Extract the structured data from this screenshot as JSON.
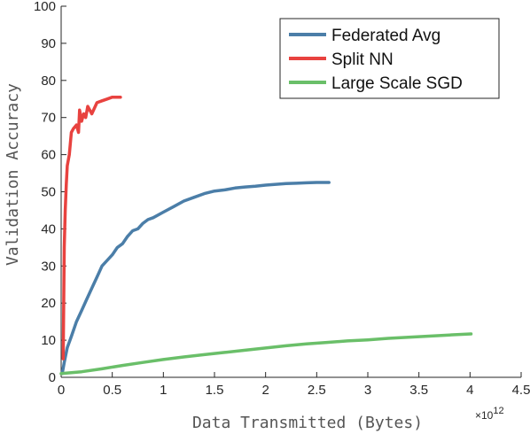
{
  "chart_data": {
    "type": "line",
    "title": "",
    "xlabel": "Data Transmitted (Bytes)",
    "ylabel": "Validation Accuracy",
    "x_multiplier": {
      "base": "×10",
      "exponent": "12"
    },
    "xlim": [
      0,
      4.5
    ],
    "ylim": [
      0,
      100
    ],
    "x_ticks": [
      0,
      0.5,
      1,
      1.5,
      2,
      2.5,
      3,
      3.5,
      4,
      4.5
    ],
    "x_tick_labels": [
      "0",
      "0.5",
      "1",
      "1.5",
      "2",
      "2.5",
      "3",
      "3.5",
      "4",
      "4.5"
    ],
    "y_ticks": [
      0,
      10,
      20,
      30,
      40,
      50,
      60,
      70,
      80,
      90,
      100
    ],
    "y_tick_labels": [
      "0",
      "10",
      "20",
      "30",
      "40",
      "50",
      "60",
      "70",
      "80",
      "90",
      "100"
    ],
    "grid": false,
    "legend_position": "top-right",
    "series": [
      {
        "name": "Federated Avg",
        "color": "#4b7ea8",
        "x": [
          0.01,
          0.03,
          0.06,
          0.1,
          0.15,
          0.2,
          0.25,
          0.3,
          0.35,
          0.4,
          0.45,
          0.5,
          0.55,
          0.6,
          0.65,
          0.7,
          0.75,
          0.8,
          0.85,
          0.9,
          1.0,
          1.1,
          1.2,
          1.3,
          1.4,
          1.5,
          1.6,
          1.7,
          1.8,
          1.9,
          2.0,
          2.1,
          2.2,
          2.3,
          2.4,
          2.5,
          2.62
        ],
        "y": [
          1,
          4,
          8,
          11,
          15,
          18,
          21,
          24,
          27,
          30,
          31.5,
          33,
          35,
          36,
          38,
          39.5,
          40,
          41.5,
          42.5,
          43,
          44.5,
          46,
          47.5,
          48.5,
          49.5,
          50.2,
          50.5,
          51,
          51.3,
          51.5,
          51.8,
          52,
          52.2,
          52.3,
          52.4,
          52.5,
          52.5
        ]
      },
      {
        "name": "Split NN",
        "color": "#e8423f",
        "x": [
          0.02,
          0.03,
          0.04,
          0.05,
          0.06,
          0.08,
          0.1,
          0.12,
          0.15,
          0.17,
          0.18,
          0.2,
          0.22,
          0.24,
          0.26,
          0.3,
          0.35,
          0.4,
          0.45,
          0.5,
          0.58
        ],
        "y": [
          5,
          35,
          45,
          52,
          57,
          60,
          66,
          67,
          68,
          66,
          72,
          69,
          71,
          70,
          73,
          71,
          74,
          74.5,
          75,
          75.5,
          75.5
        ]
      },
      {
        "name": "Large Scale SGD",
        "color": "#6abf69",
        "x": [
          0,
          0.2,
          0.4,
          0.6,
          0.8,
          1.0,
          1.2,
          1.4,
          1.6,
          1.8,
          2.0,
          2.2,
          2.4,
          2.6,
          2.8,
          3.0,
          3.2,
          3.4,
          3.6,
          3.8,
          4.01
        ],
        "y": [
          1,
          1.5,
          2.3,
          3.2,
          4.0,
          4.8,
          5.5,
          6.1,
          6.7,
          7.3,
          7.9,
          8.5,
          9.0,
          9.4,
          9.8,
          10.1,
          10.5,
          10.8,
          11.1,
          11.4,
          11.7
        ]
      }
    ]
  }
}
